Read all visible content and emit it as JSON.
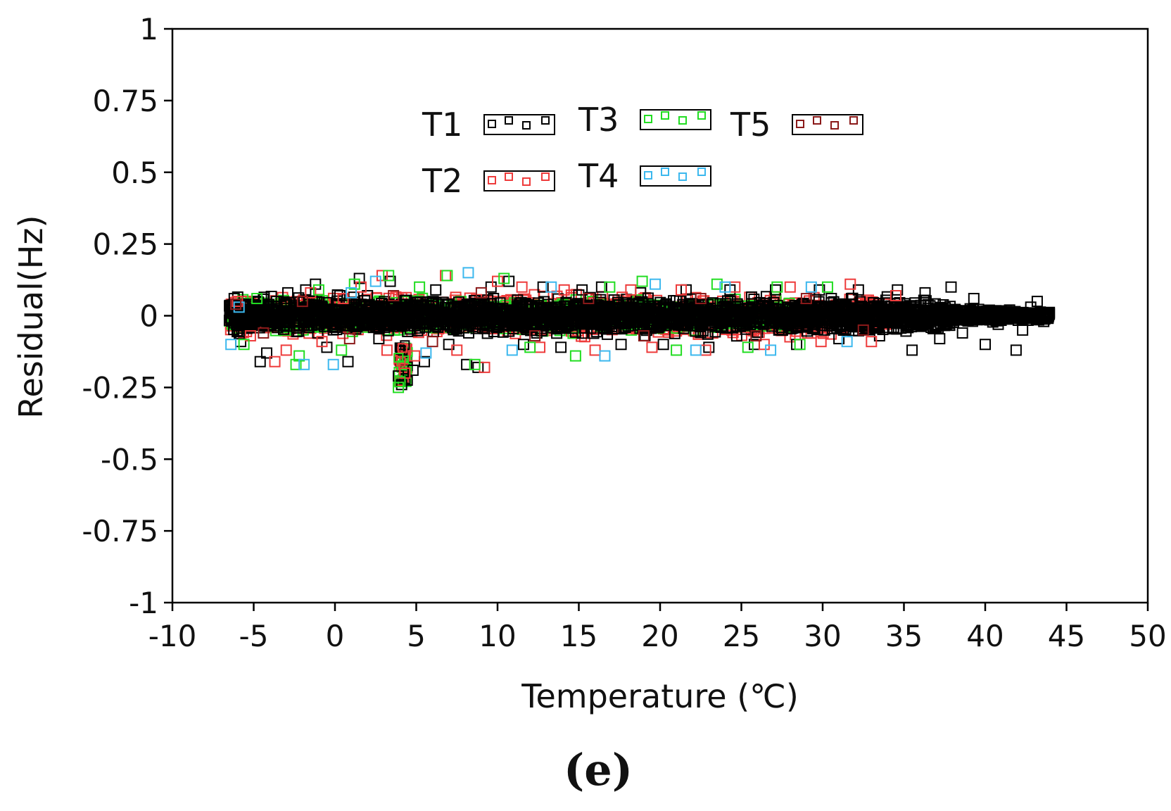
{
  "chart_data": {
    "type": "scatter",
    "title": "",
    "xlabel": "Temperature (℃)",
    "ylabel": "Residual(Hz)",
    "panel_label": "(e)",
    "xlim": [
      -10,
      50
    ],
    "ylim": [
      -1,
      1
    ],
    "xticks": [
      -10,
      -5,
      0,
      5,
      10,
      15,
      20,
      25,
      30,
      35,
      40,
      45,
      50
    ],
    "yticks": [
      1,
      0.75,
      0.5,
      0.25,
      0,
      -0.25,
      -0.5,
      -0.75,
      -1
    ],
    "xtick_labels": [
      "-10",
      "-5",
      "0",
      "5",
      "10",
      "15",
      "20",
      "25",
      "30",
      "35",
      "40",
      "45",
      "50"
    ],
    "ytick_labels": [
      "1",
      "0.75",
      "0.5",
      "0.25",
      "0",
      "-0.25",
      "-0.5",
      "-0.75",
      "-1"
    ],
    "grid": false,
    "marker": "square",
    "legend": {
      "placement": "top-center"
    },
    "series": [
      {
        "name": "T1",
        "color": "#000000",
        "points": [
          [
            -6.2,
            0.06
          ],
          [
            -5.8,
            -0.09
          ],
          [
            -5.3,
            0.04
          ],
          [
            -4.6,
            -0.16
          ],
          [
            -4.2,
            -0.13
          ],
          [
            -3.6,
            0.05
          ],
          [
            -2.9,
            0.08
          ],
          [
            -1.8,
            0.09
          ],
          [
            -1.2,
            0.11
          ],
          [
            -0.5,
            -0.11
          ],
          [
            0.3,
            0.07
          ],
          [
            0.8,
            -0.16
          ],
          [
            1.5,
            0.13
          ],
          [
            2.0,
            0.07
          ],
          [
            2.7,
            -0.08
          ],
          [
            3.4,
            0.12
          ],
          [
            3.9,
            -0.21
          ],
          [
            4.1,
            -0.24
          ],
          [
            4.3,
            -0.22
          ],
          [
            4.8,
            -0.19
          ],
          [
            5.5,
            -0.16
          ],
          [
            6.2,
            0.09
          ],
          [
            7.0,
            -0.1
          ],
          [
            8.1,
            -0.17
          ],
          [
            8.8,
            -0.18
          ],
          [
            9.6,
            0.1
          ],
          [
            10.7,
            0.12
          ],
          [
            11.6,
            -0.1
          ],
          [
            12.8,
            0.1
          ],
          [
            13.9,
            -0.11
          ],
          [
            15.2,
            0.09
          ],
          [
            16.4,
            0.1
          ],
          [
            17.6,
            -0.1
          ],
          [
            18.8,
            0.08
          ],
          [
            20.2,
            -0.1
          ],
          [
            21.6,
            0.09
          ],
          [
            23.0,
            -0.11
          ],
          [
            24.3,
            0.09
          ],
          [
            25.8,
            -0.1
          ],
          [
            27.1,
            0.09
          ],
          [
            28.4,
            -0.1
          ],
          [
            29.8,
            0.09
          ],
          [
            31.0,
            -0.08
          ],
          [
            32.2,
            0.09
          ],
          [
            33.5,
            -0.07
          ],
          [
            34.6,
            0.09
          ],
          [
            35.5,
            -0.12
          ],
          [
            36.3,
            0.08
          ],
          [
            37.2,
            -0.08
          ],
          [
            37.9,
            0.1
          ],
          [
            38.6,
            -0.06
          ],
          [
            39.3,
            0.06
          ],
          [
            40.0,
            -0.1
          ],
          [
            40.8,
            -0.03
          ],
          [
            41.5,
            0.02
          ],
          [
            41.9,
            -0.12
          ],
          [
            42.3,
            -0.05
          ],
          [
            42.8,
            0.03
          ],
          [
            43.2,
            0.05
          ],
          [
            43.6,
            -0.02
          ],
          [
            43.9,
            0.0
          ]
        ]
      },
      {
        "name": "T2",
        "color": "#ee3b3b",
        "points": [
          [
            -6.0,
            0.05
          ],
          [
            -5.2,
            -0.07
          ],
          [
            -3.7,
            -0.16
          ],
          [
            -3.0,
            -0.12
          ],
          [
            -1.5,
            0.08
          ],
          [
            -0.8,
            -0.09
          ],
          [
            0.5,
            0.06
          ],
          [
            1.6,
            0.1
          ],
          [
            2.9,
            0.14
          ],
          [
            3.2,
            -0.12
          ],
          [
            4.3,
            -0.2
          ],
          [
            4.9,
            -0.14
          ],
          [
            6.8,
            0.14
          ],
          [
            7.5,
            -0.12
          ],
          [
            9.2,
            -0.18
          ],
          [
            10.0,
            0.12
          ],
          [
            11.5,
            0.1
          ],
          [
            12.6,
            -0.11
          ],
          [
            14.1,
            0.09
          ],
          [
            16.0,
            -0.12
          ],
          [
            18.2,
            0.09
          ],
          [
            19.5,
            -0.11
          ],
          [
            21.3,
            0.09
          ],
          [
            22.8,
            -0.12
          ],
          [
            24.6,
            0.1
          ],
          [
            26.4,
            -0.1
          ],
          [
            28.0,
            0.1
          ],
          [
            29.9,
            -0.09
          ],
          [
            31.7,
            0.11
          ],
          [
            33.0,
            -0.09
          ],
          [
            34.5,
            0.07
          ]
        ]
      },
      {
        "name": "T3",
        "color": "#22dd22",
        "points": [
          [
            -5.6,
            -0.1
          ],
          [
            -4.8,
            0.06
          ],
          [
            -2.4,
            -0.17
          ],
          [
            -2.2,
            -0.14
          ],
          [
            -1.0,
            0.09
          ],
          [
            0.4,
            -0.12
          ],
          [
            1.2,
            0.11
          ],
          [
            3.3,
            0.14
          ],
          [
            3.9,
            -0.25
          ],
          [
            4.0,
            -0.23
          ],
          [
            5.2,
            0.1
          ],
          [
            6.9,
            0.14
          ],
          [
            8.6,
            -0.17
          ],
          [
            10.4,
            0.13
          ],
          [
            12.0,
            -0.11
          ],
          [
            14.8,
            -0.14
          ],
          [
            16.9,
            0.1
          ],
          [
            18.9,
            0.12
          ],
          [
            21.0,
            -0.12
          ],
          [
            23.5,
            0.11
          ],
          [
            25.4,
            -0.11
          ],
          [
            27.2,
            0.1
          ],
          [
            28.6,
            -0.1
          ],
          [
            30.3,
            0.1
          ]
        ]
      },
      {
        "name": "T4",
        "color": "#3cb8ee",
        "points": [
          [
            -6.4,
            -0.1
          ],
          [
            -5.9,
            0.03
          ],
          [
            -1.9,
            -0.17
          ],
          [
            -0.1,
            -0.17
          ],
          [
            1.0,
            0.08
          ],
          [
            2.5,
            0.12
          ],
          [
            5.6,
            -0.13
          ],
          [
            8.2,
            0.15
          ],
          [
            10.9,
            -0.12
          ],
          [
            13.3,
            0.1
          ],
          [
            16.6,
            -0.14
          ],
          [
            19.7,
            0.11
          ],
          [
            22.2,
            -0.12
          ],
          [
            24.0,
            0.1
          ],
          [
            26.8,
            -0.12
          ],
          [
            29.3,
            0.1
          ],
          [
            31.5,
            -0.09
          ]
        ]
      },
      {
        "name": "T5",
        "color": "#8b1a1a",
        "points": [
          [
            -6.1,
            0.04
          ],
          [
            -4.4,
            -0.06
          ],
          [
            -2.0,
            0.05
          ],
          [
            0.9,
            -0.08
          ],
          [
            3.6,
            0.07
          ],
          [
            6.0,
            -0.09
          ],
          [
            9.0,
            0.08
          ],
          [
            12.3,
            -0.07
          ],
          [
            15.6,
            0.06
          ],
          [
            19.0,
            -0.07
          ],
          [
            22.5,
            0.06
          ],
          [
            25.9,
            -0.07
          ],
          [
            29.0,
            0.06
          ],
          [
            32.5,
            -0.05
          ]
        ]
      }
    ]
  }
}
